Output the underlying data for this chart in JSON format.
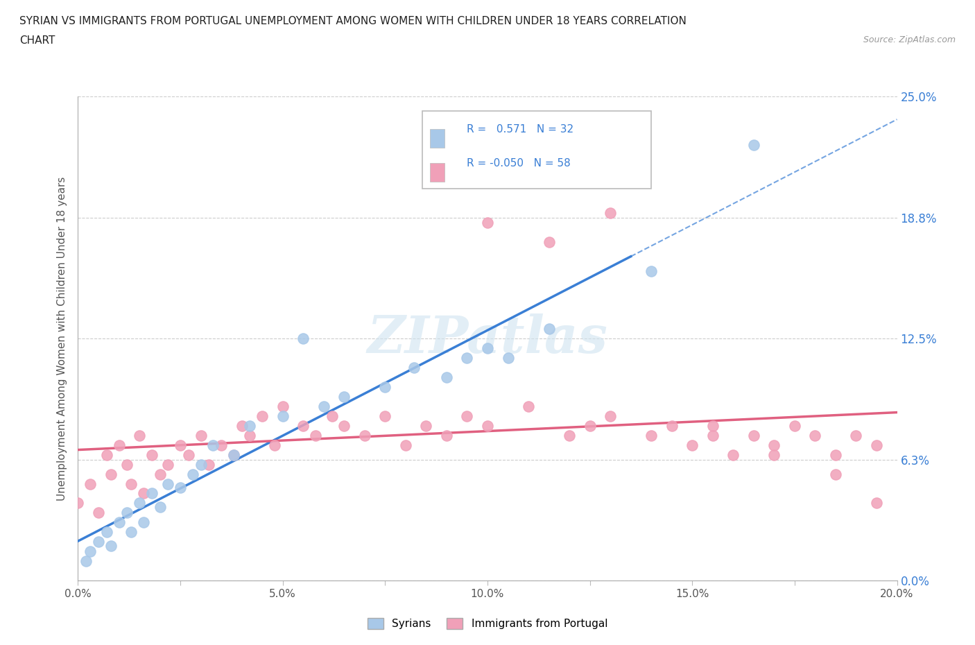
{
  "title_line1": "SYRIAN VS IMMIGRANTS FROM PORTUGAL UNEMPLOYMENT AMONG WOMEN WITH CHILDREN UNDER 18 YEARS CORRELATION",
  "title_line2": "CHART",
  "source_text": "Source: ZipAtlas.com",
  "ylabel": "Unemployment Among Women with Children Under 18 years",
  "xlim": [
    0.0,
    0.2
  ],
  "ylim": [
    0.0,
    0.25
  ],
  "yticks": [
    0.0,
    0.0625,
    0.125,
    0.1875,
    0.25
  ],
  "ytick_labels": [
    "0.0%",
    "6.3%",
    "12.5%",
    "18.8%",
    "25.0%"
  ],
  "xticks": [
    0.0,
    0.025,
    0.05,
    0.075,
    0.1,
    0.125,
    0.15,
    0.175,
    0.2
  ],
  "xtick_labels": [
    "0.0%",
    "",
    "5.0%",
    "",
    "10.0%",
    "",
    "15.0%",
    "",
    "20.0%"
  ],
  "syrian_color": "#a8c8e8",
  "portugal_color": "#f0a0b8",
  "syrian_line_color": "#3a7fd5",
  "portugal_line_color": "#e06080",
  "R_syrian": 0.571,
  "N_syrian": 32,
  "R_portugal": -0.05,
  "N_portugal": 58,
  "watermark": "ZIPatlas",
  "legend_labels": [
    "Syrians",
    "Immigrants from Portugal"
  ],
  "syrian_x": [
    0.002,
    0.003,
    0.005,
    0.007,
    0.008,
    0.01,
    0.012,
    0.013,
    0.015,
    0.016,
    0.018,
    0.02,
    0.022,
    0.025,
    0.028,
    0.03,
    0.033,
    0.038,
    0.042,
    0.05,
    0.055,
    0.06,
    0.065,
    0.075,
    0.082,
    0.09,
    0.095,
    0.1,
    0.105,
    0.115,
    0.14,
    0.165
  ],
  "syrian_y": [
    0.01,
    0.015,
    0.02,
    0.025,
    0.018,
    0.03,
    0.035,
    0.025,
    0.04,
    0.03,
    0.045,
    0.038,
    0.05,
    0.048,
    0.055,
    0.06,
    0.07,
    0.065,
    0.08,
    0.085,
    0.125,
    0.09,
    0.095,
    0.1,
    0.11,
    0.105,
    0.115,
    0.12,
    0.115,
    0.13,
    0.16,
    0.225
  ],
  "portugal_x": [
    0.0,
    0.003,
    0.005,
    0.007,
    0.008,
    0.01,
    0.012,
    0.013,
    0.015,
    0.016,
    0.018,
    0.02,
    0.022,
    0.025,
    0.027,
    0.03,
    0.032,
    0.035,
    0.038,
    0.04,
    0.042,
    0.045,
    0.048,
    0.05,
    0.055,
    0.058,
    0.062,
    0.065,
    0.07,
    0.075,
    0.08,
    0.085,
    0.09,
    0.095,
    0.1,
    0.11,
    0.12,
    0.125,
    0.13,
    0.14,
    0.15,
    0.155,
    0.16,
    0.165,
    0.17,
    0.175,
    0.18,
    0.185,
    0.19,
    0.195,
    0.1,
    0.115,
    0.13,
    0.145,
    0.155,
    0.17,
    0.185,
    0.195
  ],
  "portugal_y": [
    0.04,
    0.05,
    0.035,
    0.065,
    0.055,
    0.07,
    0.06,
    0.05,
    0.075,
    0.045,
    0.065,
    0.055,
    0.06,
    0.07,
    0.065,
    0.075,
    0.06,
    0.07,
    0.065,
    0.08,
    0.075,
    0.085,
    0.07,
    0.09,
    0.08,
    0.075,
    0.085,
    0.08,
    0.075,
    0.085,
    0.07,
    0.08,
    0.075,
    0.085,
    0.08,
    0.09,
    0.075,
    0.08,
    0.085,
    0.075,
    0.07,
    0.08,
    0.065,
    0.075,
    0.07,
    0.08,
    0.075,
    0.065,
    0.075,
    0.07,
    0.185,
    0.175,
    0.19,
    0.08,
    0.075,
    0.065,
    0.055,
    0.04
  ]
}
